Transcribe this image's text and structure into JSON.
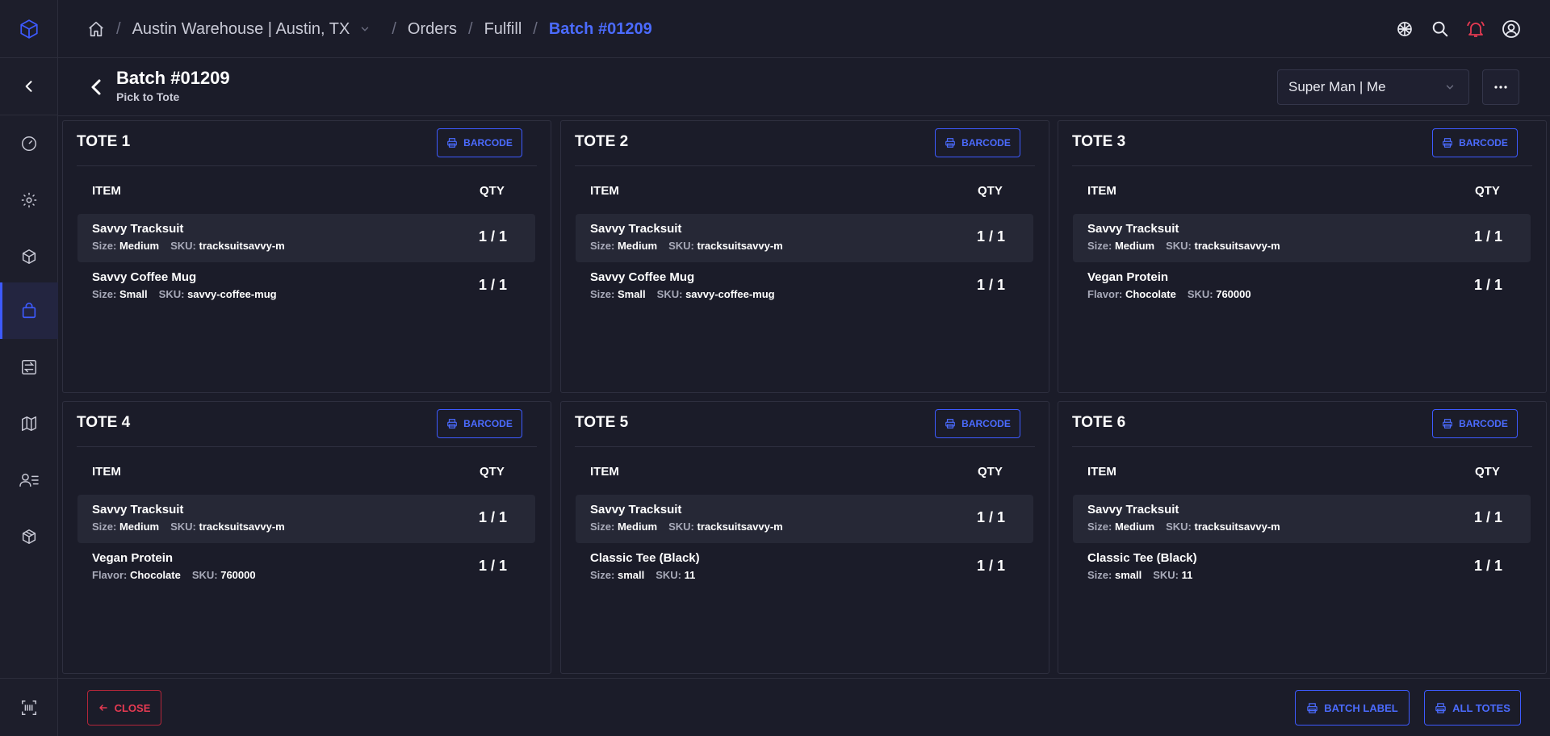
{
  "colors": {
    "accent": "#3d5afe",
    "danger": "#e63a52",
    "background": "#1b1c29"
  },
  "breadcrumb": {
    "home_icon": "home-icon",
    "warehouse": "Austin Warehouse | Austin, TX",
    "separator": "/",
    "items": [
      "Orders",
      "Fulfill"
    ],
    "current": "Batch #01209"
  },
  "topbar_icons": [
    "globe-bug-icon",
    "search-icon",
    "bell-alert-icon",
    "user-circle-icon"
  ],
  "sidebar": {
    "logo": "cube-logo-icon",
    "collapse_icon": "chevron-left-icon",
    "items": [
      {
        "icon": "dashboard-gauge-icon",
        "active": false
      },
      {
        "icon": "gear-icon",
        "active": false
      },
      {
        "icon": "box-icon",
        "active": false
      },
      {
        "icon": "shopping-bag-icon",
        "active": true
      },
      {
        "icon": "transfer-icon",
        "active": false
      },
      {
        "icon": "map-icon",
        "active": false
      },
      {
        "icon": "user-list-icon",
        "active": false
      },
      {
        "icon": "package-icon",
        "active": false
      }
    ],
    "bottom_icon": "barcode-scan-icon"
  },
  "header": {
    "title": "Batch #01209",
    "subtitle": "Pick to Tote",
    "user_select": "Super Man | Me"
  },
  "labels": {
    "barcode": "BARCODE",
    "item": "ITEM",
    "qty": "QTY"
  },
  "totes": [
    {
      "title": "TOTE 1",
      "items": [
        {
          "name": "Savvy Tracksuit",
          "attr_label": "Size:",
          "attr_value": "Medium",
          "sku_label": "SKU:",
          "sku": "tracksuitsavvy-m",
          "qty": "1 / 1"
        },
        {
          "name": "Savvy Coffee Mug",
          "attr_label": "Size:",
          "attr_value": "Small",
          "sku_label": "SKU:",
          "sku": "savvy-coffee-mug",
          "qty": "1 / 1"
        }
      ]
    },
    {
      "title": "TOTE 2",
      "items": [
        {
          "name": "Savvy Tracksuit",
          "attr_label": "Size:",
          "attr_value": "Medium",
          "sku_label": "SKU:",
          "sku": "tracksuitsavvy-m",
          "qty": "1 / 1"
        },
        {
          "name": "Savvy Coffee Mug",
          "attr_label": "Size:",
          "attr_value": "Small",
          "sku_label": "SKU:",
          "sku": "savvy-coffee-mug",
          "qty": "1 / 1"
        }
      ]
    },
    {
      "title": "TOTE 3",
      "items": [
        {
          "name": "Savvy Tracksuit",
          "attr_label": "Size:",
          "attr_value": "Medium",
          "sku_label": "SKU:",
          "sku": "tracksuitsavvy-m",
          "qty": "1 / 1"
        },
        {
          "name": "Vegan Protein",
          "attr_label": "Flavor:",
          "attr_value": "Chocolate",
          "sku_label": "SKU:",
          "sku": "760000",
          "qty": "1 / 1"
        }
      ]
    },
    {
      "title": "TOTE 4",
      "items": [
        {
          "name": "Savvy Tracksuit",
          "attr_label": "Size:",
          "attr_value": "Medium",
          "sku_label": "SKU:",
          "sku": "tracksuitsavvy-m",
          "qty": "1 / 1"
        },
        {
          "name": "Vegan Protein",
          "attr_label": "Flavor:",
          "attr_value": "Chocolate",
          "sku_label": "SKU:",
          "sku": "760000",
          "qty": "1 / 1"
        }
      ]
    },
    {
      "title": "TOTE 5",
      "items": [
        {
          "name": "Savvy Tracksuit",
          "attr_label": "Size:",
          "attr_value": "Medium",
          "sku_label": "SKU:",
          "sku": "tracksuitsavvy-m",
          "qty": "1 / 1"
        },
        {
          "name": "Classic Tee (Black)",
          "attr_label": "Size:",
          "attr_value": "small",
          "sku_label": "SKU:",
          "sku": "11",
          "qty": "1 / 1"
        }
      ]
    },
    {
      "title": "TOTE 6",
      "items": [
        {
          "name": "Savvy Tracksuit",
          "attr_label": "Size:",
          "attr_value": "Medium",
          "sku_label": "SKU:",
          "sku": "tracksuitsavvy-m",
          "qty": "1 / 1"
        },
        {
          "name": "Classic Tee (Black)",
          "attr_label": "Size:",
          "attr_value": "small",
          "sku_label": "SKU:",
          "sku": "11",
          "qty": "1 / 1"
        }
      ]
    }
  ],
  "footer": {
    "close": "CLOSE",
    "batch_label": "BATCH LABEL",
    "all_totes": "ALL TOTES"
  }
}
